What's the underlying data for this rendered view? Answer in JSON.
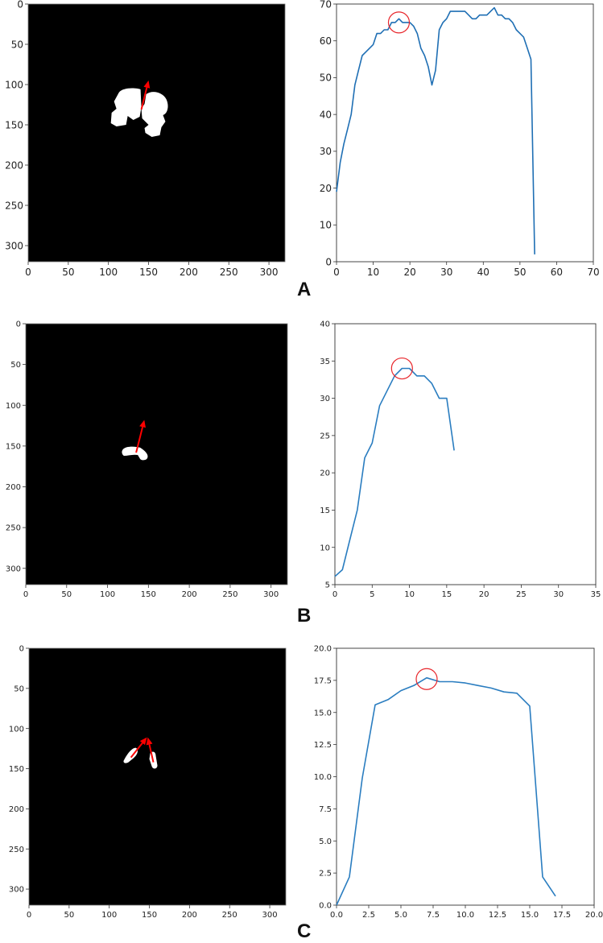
{
  "panels": [
    {
      "label": "A",
      "image_panel": {
        "type": "mask-image",
        "extent": [
          0,
          320
        ],
        "xticks": [
          "0",
          "50",
          "100",
          "150",
          "200",
          "250",
          "300"
        ],
        "yticks": [
          "0",
          "50",
          "100",
          "150",
          "200",
          "250",
          "300"
        ],
        "arrows": [
          {
            "from": [
              141,
              131
            ],
            "to": [
              150,
              95
            ]
          }
        ]
      }
    },
    {
      "label": "B",
      "image_panel": {
        "type": "mask-image",
        "extent": [
          0,
          320
        ],
        "xticks": [
          "0",
          "50",
          "100",
          "150",
          "200",
          "250",
          "300"
        ],
        "yticks": [
          "0",
          "50",
          "100",
          "150",
          "200",
          "250",
          "300"
        ],
        "arrows": [
          {
            "from": [
              135,
              158
            ],
            "to": [
              145,
              118
            ]
          }
        ]
      }
    },
    {
      "label": "C",
      "image_panel": {
        "type": "mask-image",
        "extent": [
          0,
          320
        ],
        "xticks": [
          "0",
          "50",
          "100",
          "150",
          "200",
          "250",
          "300"
        ],
        "yticks": [
          "0",
          "50",
          "100",
          "150",
          "200",
          "250",
          "300"
        ],
        "arrows": [
          {
            "from": [
              127,
              136
            ],
            "to": [
              147,
              111
            ]
          },
          {
            "from": [
              155,
              142
            ],
            "to": [
              148,
              111
            ]
          }
        ]
      }
    }
  ],
  "chart_data": [
    {
      "type": "line",
      "panel": "A",
      "title": "",
      "xlabel": "",
      "ylabel": "",
      "xlim": [
        0,
        70
      ],
      "ylim": [
        0,
        70
      ],
      "xticks": [
        "0",
        "10",
        "20",
        "30",
        "40",
        "50",
        "60",
        "70"
      ],
      "yticks": [
        "0",
        "10",
        "20",
        "30",
        "40",
        "50",
        "60",
        "70"
      ],
      "grid": false,
      "line_color": "#1f6fb4",
      "marker": {
        "type": "circle",
        "color": "#e8262b",
        "x": 17,
        "y": 65
      },
      "x": [
        0,
        1,
        2,
        3,
        4,
        5,
        6,
        7,
        8,
        9,
        10,
        11,
        12,
        13,
        14,
        15,
        16,
        17,
        18,
        19,
        20,
        21,
        22,
        23,
        24,
        25,
        26,
        27,
        28,
        29,
        30,
        31,
        32,
        33,
        34,
        35,
        36,
        37,
        38,
        39,
        40,
        41,
        42,
        43,
        44,
        45,
        46,
        47,
        48,
        49,
        50,
        51,
        52,
        53,
        54
      ],
      "y": [
        19,
        27,
        32,
        36,
        40,
        48,
        52,
        56,
        57,
        58,
        59,
        62,
        62,
        63,
        63,
        65,
        65,
        66,
        65,
        65,
        65,
        64,
        62,
        58,
        56,
        53,
        48,
        52,
        63,
        65,
        66,
        68,
        68,
        68,
        68,
        68,
        67,
        66,
        66,
        67,
        67,
        67,
        68,
        69,
        67,
        67,
        66,
        66,
        65,
        63,
        62,
        61,
        58,
        55,
        2
      ]
    },
    {
      "type": "line",
      "panel": "B",
      "title": "",
      "xlabel": "",
      "ylabel": "",
      "xlim": [
        0,
        35
      ],
      "ylim": [
        5,
        40
      ],
      "xticks": [
        "0",
        "5",
        "10",
        "15",
        "20",
        "25",
        "30",
        "35"
      ],
      "yticks": [
        "5",
        "10",
        "15",
        "20",
        "25",
        "30",
        "35",
        "40"
      ],
      "grid": false,
      "line_color": "#2a7dc0",
      "marker": {
        "type": "circle",
        "color": "#e8262b",
        "x": 9,
        "y": 34
      },
      "x": [
        0,
        1,
        2,
        3,
        4,
        5,
        6,
        7,
        8,
        9,
        10,
        11,
        12,
        13,
        14,
        15,
        16
      ],
      "y": [
        6.1,
        7,
        11,
        15,
        22,
        24,
        29,
        31,
        33,
        34,
        34,
        33,
        33,
        32,
        30,
        30,
        23
      ]
    },
    {
      "type": "line",
      "panel": "C",
      "title": "",
      "xlabel": "",
      "ylabel": "",
      "xlim": [
        0,
        20
      ],
      "ylim": [
        0,
        20
      ],
      "xticks": [
        "0.0",
        "2.5",
        "5.0",
        "7.5",
        "10.0",
        "12.5",
        "15.0",
        "17.5",
        "20.0"
      ],
      "yticks": [
        "0.0",
        "2.5",
        "5.0",
        "7.5",
        "10.0",
        "12.5",
        "15.0",
        "17.5",
        "20.0"
      ],
      "grid": false,
      "line_color": "#2a7dc0",
      "marker": {
        "type": "circle",
        "color": "#e8262b",
        "x": 7,
        "y": 17.6
      },
      "x": [
        0,
        1,
        2,
        3,
        4,
        5,
        6,
        7,
        8,
        9,
        10,
        11,
        12,
        13,
        14,
        15,
        16,
        17
      ],
      "y": [
        0.0,
        2.2,
        9.9,
        15.6,
        16.0,
        16.7,
        17.1,
        17.7,
        17.4,
        17.4,
        17.3,
        17.1,
        16.9,
        16.6,
        16.5,
        15.5,
        2.2,
        0.7
      ]
    }
  ]
}
